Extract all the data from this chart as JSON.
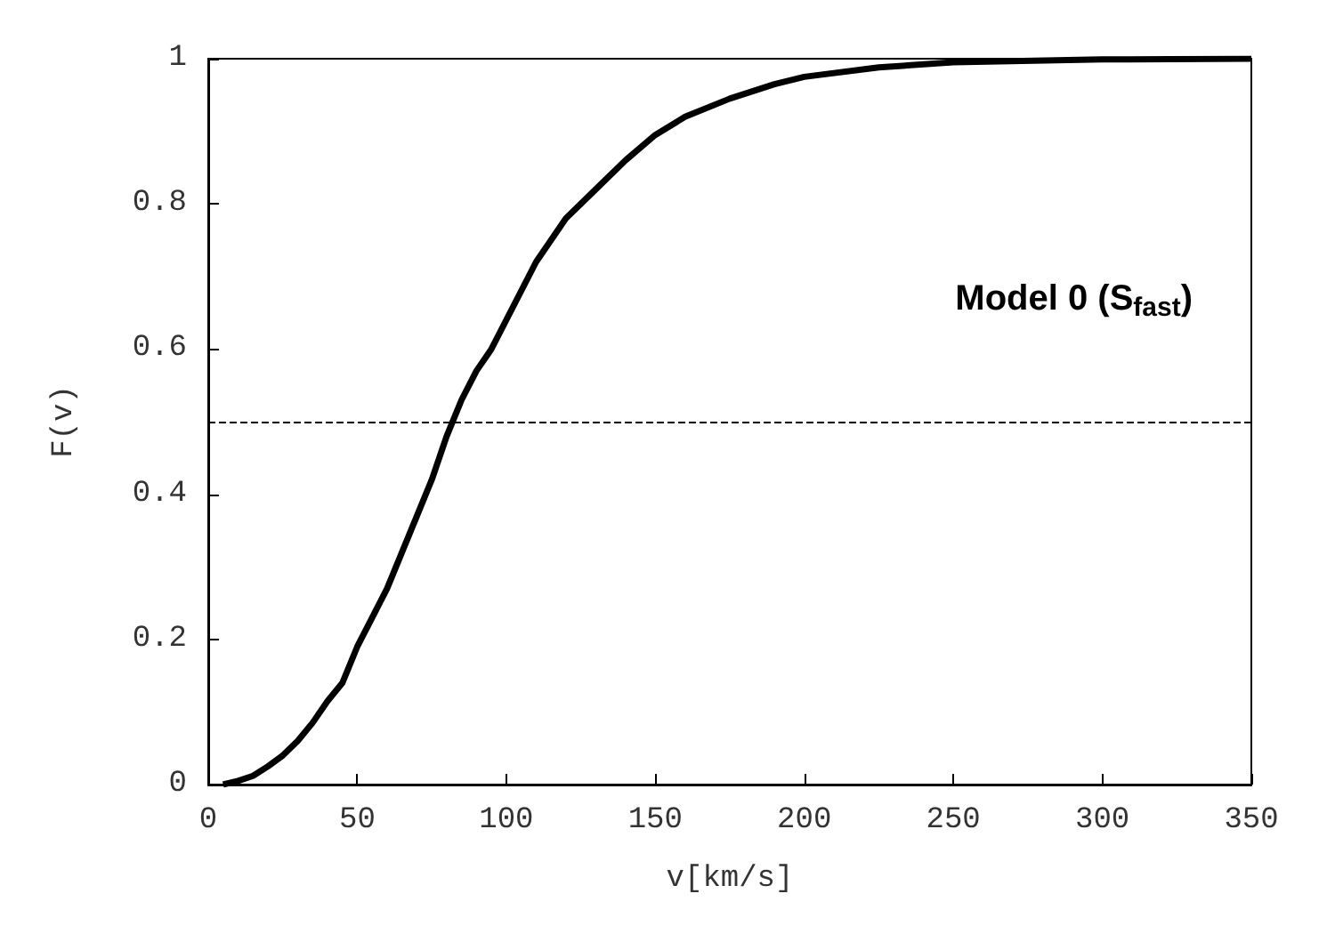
{
  "chart_data": {
    "type": "line",
    "xlabel": "v[km/s]",
    "ylabel": "F(v)",
    "annotations": [
      "Model 0 (S$_{fast}$)"
    ],
    "x": [
      5,
      10,
      15,
      20,
      25,
      30,
      35,
      40,
      45,
      50,
      55,
      60,
      65,
      70,
      75,
      80,
      85,
      90,
      95,
      100,
      110,
      120,
      130,
      140,
      150,
      160,
      175,
      190,
      200,
      225,
      250,
      300,
      350
    ],
    "series": [
      {
        "color": "#000000",
        "values": [
          0,
          0.005,
          0.012,
          0.025,
          0.04,
          0.06,
          0.085,
          0.115,
          0.14,
          0.19,
          0.23,
          0.27,
          0.32,
          0.37,
          0.42,
          0.48,
          0.53,
          0.57,
          0.6,
          0.64,
          0.72,
          0.78,
          0.82,
          0.86,
          0.895,
          0.92,
          0.945,
          0.965,
          0.975,
          0.988,
          0.995,
          0.999,
          1.0
        ]
      }
    ],
    "xlim": [
      0,
      350
    ],
    "ylim": [
      0,
      1
    ],
    "xticks": [
      0,
      50,
      100,
      150,
      200,
      250,
      300,
      350
    ],
    "yticks": [
      0,
      0.2,
      0.4,
      0.6,
      0.8,
      1
    ],
    "ref_lines": [
      {
        "axis": "y",
        "value": 0.5,
        "color": "#000000",
        "line_style": "dashed"
      }
    ],
    "grid": false,
    "marker": "none",
    "line_style": "solid"
  }
}
